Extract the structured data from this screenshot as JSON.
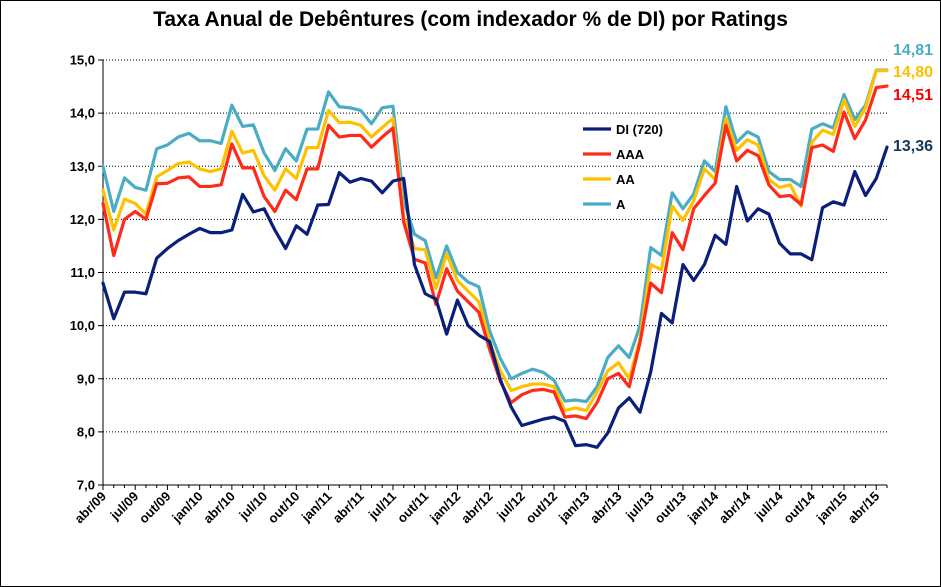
{
  "chart_data": {
    "type": "line",
    "title": "Taxa Anual de Debêntures (com indexador % de DI) por Ratings",
    "xlabel": "",
    "ylabel": "",
    "ylim": [
      7.0,
      15.0
    ],
    "yticks": [
      "7,0",
      "8,0",
      "9,0",
      "10,0",
      "11,0",
      "12,0",
      "13,0",
      "14,0",
      "15,0"
    ],
    "grid": "horizontal-dotted",
    "legend_position": "center",
    "x_tick_labels": [
      "abr/09",
      "jul/09",
      "out/09",
      "jan/10",
      "abr/10",
      "jul/10",
      "out/10",
      "jan/11",
      "abr/11",
      "jul/11",
      "out/11",
      "jan/12",
      "abr/12",
      "jul/12",
      "out/12",
      "jan/13",
      "abr/13",
      "jul/13",
      "out/13",
      "jan/14",
      "abr/14",
      "jul/14",
      "out/14",
      "jan/15",
      "abr/15"
    ],
    "x_count": 74,
    "series": [
      {
        "name": "DI (720)",
        "color": "#0b1f7a",
        "end_label": "13,36",
        "end_label_color": "#17365d",
        "values": [
          10.8,
          10.13,
          10.63,
          10.63,
          10.6,
          11.27,
          11.45,
          11.6,
          11.72,
          11.83,
          11.75,
          11.75,
          11.8,
          12.47,
          12.14,
          12.2,
          11.8,
          11.45,
          11.88,
          11.72,
          12.27,
          12.28,
          12.88,
          12.7,
          12.77,
          12.72,
          12.5,
          12.72,
          12.77,
          11.15,
          10.6,
          10.5,
          9.84,
          10.48,
          10.0,
          9.82,
          9.7,
          8.98,
          8.47,
          8.12,
          8.18,
          8.24,
          8.28,
          8.2,
          7.74,
          7.76,
          7.71,
          7.98,
          8.45,
          8.64,
          8.37,
          9.13,
          10.23,
          10.05,
          11.15,
          10.85,
          11.15,
          11.7,
          11.53,
          12.62,
          11.97,
          12.2,
          12.1,
          11.55,
          11.35,
          11.35,
          11.24,
          12.22,
          12.33,
          12.27,
          12.9,
          12.45,
          12.77,
          13.36
        ]
      },
      {
        "name": "AAA",
        "color": "#ff2a1a",
        "end_label": "14,51",
        "end_label_color": "#ff0000",
        "values": [
          12.3,
          11.32,
          12.0,
          12.15,
          12.0,
          12.67,
          12.68,
          12.78,
          12.8,
          12.62,
          12.62,
          12.65,
          13.42,
          12.97,
          12.97,
          12.43,
          12.15,
          12.55,
          12.37,
          12.95,
          12.95,
          13.77,
          13.55,
          13.58,
          13.58,
          13.36,
          13.55,
          13.72,
          11.95,
          11.25,
          11.18,
          10.4,
          11.07,
          10.65,
          10.45,
          10.25,
          9.55,
          8.95,
          8.55,
          8.7,
          8.78,
          8.8,
          8.75,
          8.28,
          8.3,
          8.25,
          8.55,
          9.0,
          9.1,
          8.85,
          9.68,
          10.8,
          10.62,
          11.75,
          11.43,
          12.2,
          12.45,
          12.68,
          13.77,
          13.1,
          13.3,
          13.2,
          12.65,
          12.43,
          12.45,
          12.28,
          13.35,
          13.4,
          13.28,
          14.02,
          13.52,
          13.87,
          14.48,
          14.51
        ]
      },
      {
        "name": "AA",
        "color": "#ffc000",
        "end_label": "14,80",
        "end_label_color": "#ffc000",
        "values": [
          12.55,
          11.8,
          12.38,
          12.3,
          12.1,
          12.8,
          12.92,
          13.05,
          13.08,
          12.95,
          12.9,
          12.95,
          13.66,
          13.25,
          13.3,
          12.82,
          12.55,
          12.95,
          12.77,
          13.35,
          13.35,
          14.05,
          13.82,
          13.83,
          13.77,
          13.55,
          13.73,
          13.9,
          12.05,
          11.45,
          11.43,
          10.7,
          11.35,
          10.85,
          10.65,
          10.45,
          9.7,
          9.15,
          8.78,
          8.85,
          8.9,
          8.9,
          8.85,
          8.4,
          8.45,
          8.4,
          8.75,
          9.15,
          9.3,
          9.0,
          9.75,
          11.15,
          11.05,
          12.25,
          11.98,
          12.35,
          12.95,
          12.75,
          13.9,
          13.3,
          13.5,
          13.4,
          12.75,
          12.6,
          12.65,
          12.25,
          13.45,
          13.68,
          13.6,
          14.25,
          13.75,
          14.1,
          14.8,
          14.8
        ]
      },
      {
        "name": "A",
        "color": "#4bacc6",
        "end_label": "14,81",
        "end_label_color": "#4bacc6",
        "values": [
          13.0,
          12.15,
          12.78,
          12.6,
          12.55,
          13.33,
          13.4,
          13.55,
          13.62,
          13.48,
          13.48,
          13.43,
          14.15,
          13.75,
          13.78,
          13.25,
          12.92,
          13.33,
          13.1,
          13.7,
          13.7,
          14.4,
          14.12,
          14.1,
          14.05,
          13.8,
          14.1,
          14.13,
          12.35,
          11.72,
          11.6,
          10.9,
          11.5,
          11.0,
          10.82,
          10.73,
          9.9,
          9.38,
          9.0,
          9.1,
          9.18,
          9.12,
          8.97,
          8.58,
          8.6,
          8.57,
          8.85,
          9.4,
          9.62,
          9.4,
          10.0,
          11.47,
          11.32,
          12.5,
          12.2,
          12.48,
          13.1,
          12.9,
          14.12,
          13.45,
          13.65,
          13.55,
          12.9,
          12.75,
          12.75,
          12.62,
          13.7,
          13.8,
          13.72,
          14.35,
          13.88,
          14.15,
          14.81,
          14.81
        ]
      }
    ]
  }
}
